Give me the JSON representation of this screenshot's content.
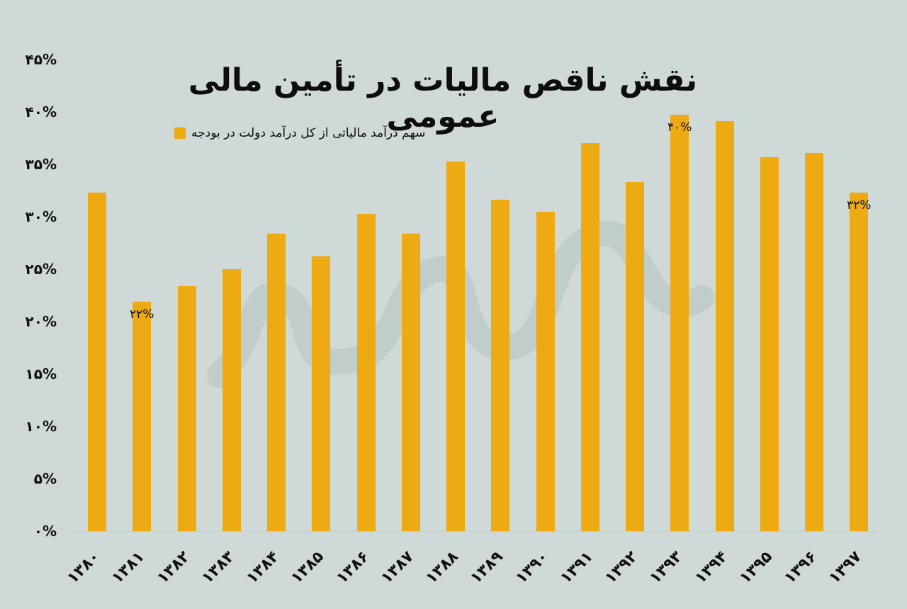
{
  "chart_data": {
    "type": "bar",
    "title": "نقش ناقص مالیات در تأمین مالی عمومی",
    "xlabel": "",
    "ylabel": "",
    "ylim": [
      0,
      45
    ],
    "y_ticks": [
      "۰%",
      "۵%",
      "۱۰%",
      "۱۵%",
      "۲۰%",
      "۲۵%",
      "۳۰%",
      "۳۵%",
      "۴۰%",
      "۴۵%"
    ],
    "y_tick_values": [
      0,
      5,
      10,
      15,
      20,
      25,
      30,
      35,
      40,
      45
    ],
    "grid": false,
    "legend_position": "top-left",
    "categories": [
      "۱۳۸۰",
      "۱۳۸۱",
      "۱۳۸۲",
      "۱۳۸۳",
      "۱۳۸۴",
      "۱۳۸۵",
      "۱۳۸۶",
      "۱۳۸۷",
      "۱۳۸۸",
      "۱۳۸۹",
      "۱۳۹۰",
      "۱۳۹۱",
      "۱۳۹۲",
      "۱۳۹۳",
      "۱۳۹۴",
      "۱۳۹۵",
      "۱۳۹۶",
      "۱۳۹۷"
    ],
    "series": [
      {
        "name": "سهم درآمد مالیاتی از کل درآمد دولت در بودجه",
        "color": "#eeaa12",
        "values": [
          32.3,
          21.9,
          23.4,
          25.0,
          28.4,
          26.2,
          30.3,
          28.4,
          35.3,
          31.6,
          30.5,
          37.0,
          33.3,
          39.7,
          39.1,
          35.7,
          36.1,
          32.3
        ]
      }
    ],
    "annotations": [
      {
        "category_index": 1,
        "text": "۲۲%"
      },
      {
        "category_index": 13,
        "text": "۴۰%"
      },
      {
        "category_index": 17,
        "text": "۳۲%"
      }
    ]
  },
  "colors": {
    "background": "#cfd9d8",
    "bar": "#eeaa12",
    "text": "#111111"
  }
}
